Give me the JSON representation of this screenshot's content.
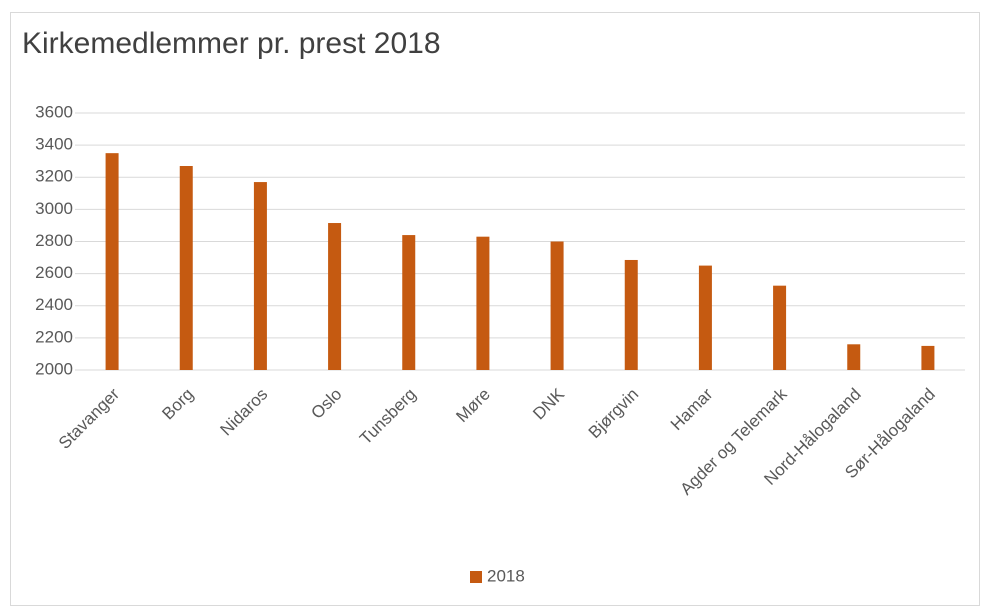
{
  "chart_data": {
    "type": "bar",
    "title": "Kirkemedlemmer pr. prest 2018",
    "categories": [
      "Stavanger",
      "Borg",
      "Nidaros",
      "Oslo",
      "Tunsberg",
      "Møre",
      "DNK",
      "Bjørgvin",
      "Hamar",
      "Agder og Telemark",
      "Nord-Hålogaland",
      "Sør-Hålogaland"
    ],
    "series": [
      {
        "name": "2018",
        "color": "#c55a11",
        "values": [
          3350,
          3270,
          3170,
          2915,
          2840,
          2830,
          2800,
          2685,
          2650,
          2525,
          2160,
          2150
        ]
      }
    ],
    "ylim": [
      2000,
      3600
    ],
    "yticks": [
      2000,
      2200,
      2400,
      2600,
      2800,
      3000,
      3200,
      3400,
      3600
    ],
    "grid": true,
    "legend": "bottom"
  }
}
